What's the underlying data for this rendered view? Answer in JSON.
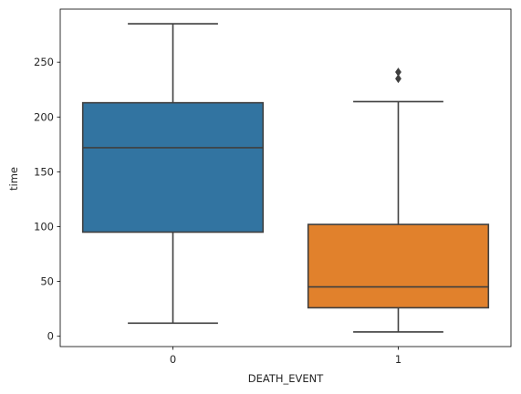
{
  "chart_data": {
    "type": "box",
    "title": "",
    "xlabel": "DEATH_EVENT",
    "ylabel": "time",
    "categories": [
      "0",
      "1"
    ],
    "ylim": [
      -9.4,
      298.4
    ],
    "yticks": [
      0,
      50,
      100,
      150,
      200,
      250
    ],
    "grid": false,
    "legend": "none",
    "boxes": [
      {
        "category": "0",
        "whisker_low": 12,
        "q1": 95,
        "median": 172,
        "q3": 213,
        "whisker_high": 285,
        "outliers": [],
        "color": "#3274a1"
      },
      {
        "category": "1",
        "whisker_low": 4,
        "q1": 26,
        "median": 45,
        "q3": 102,
        "whisker_high": 214,
        "outliers": [
          235,
          241
        ],
        "color": "#e1812c"
      }
    ]
  },
  "colors": {
    "axis": "#000000",
    "box_edge": "#3f3f3f",
    "text": "#262626"
  }
}
